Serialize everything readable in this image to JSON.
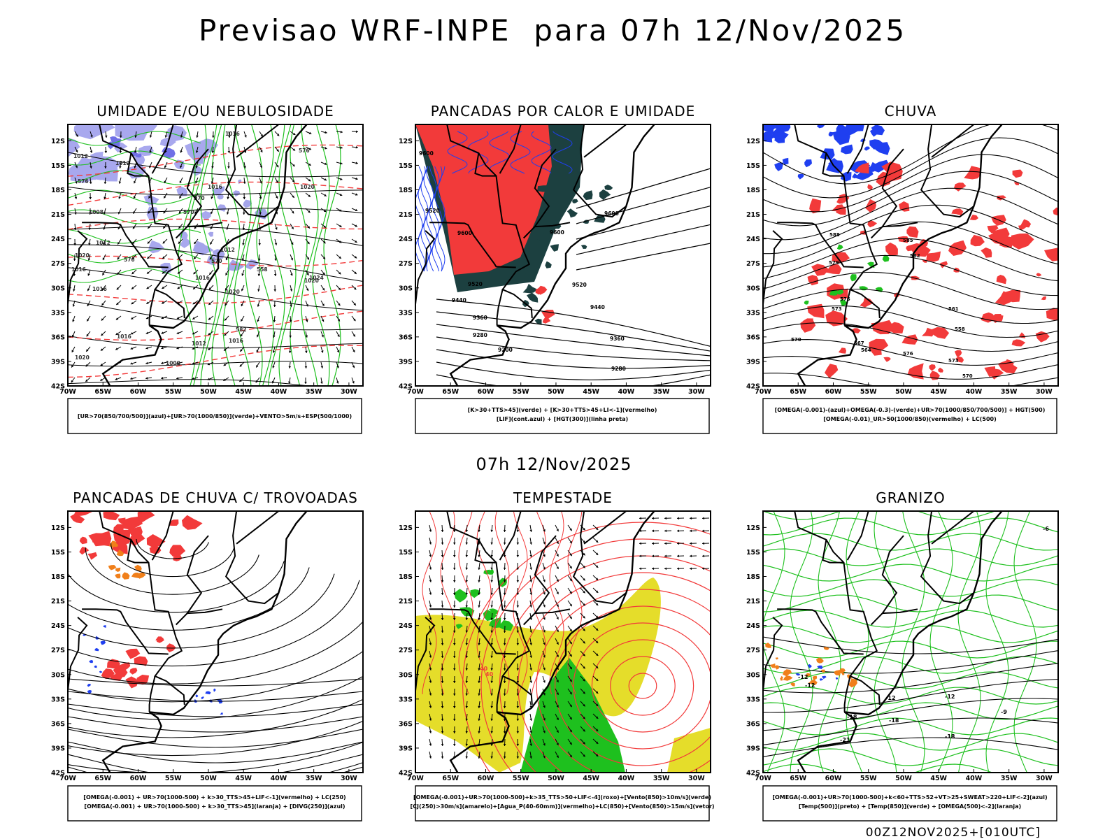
{
  "title": "Previsao WRF-INPE  para 07h 12/Nov/2025",
  "subtitle": "07h 12/Nov/2025",
  "footer": "00Z12NOV2025+[010UTC]",
  "colors": {
    "red": "#f23a3a",
    "blue": "#1f3ff0",
    "green": "#1ec01e",
    "lavender": "#a8a8ee",
    "darkteal": "#1c4040",
    "yellow": "#e5dd2a",
    "orange": "#f07f1a",
    "black": "#000000"
  },
  "chart_data": [
    {
      "id": "umidade",
      "type": "map",
      "title": "UMIDADE E/OU NEBULOSIDADE",
      "xticks": [
        "70W",
        "65W",
        "60W",
        "55W",
        "50W",
        "45W",
        "40W",
        "35W",
        "30W"
      ],
      "yticks": [
        "12S",
        "15S",
        "18S",
        "21S",
        "24S",
        "27S",
        "30S",
        "33S",
        "36S",
        "39S",
        "42S"
      ],
      "lon_range": [
        -70,
        -28
      ],
      "lat_range": [
        -42,
        -10
      ],
      "legend": [
        "[UR>70(850/700/500)](azul)+[UR>70(1000/850)](verde)+VENTO>5m/s+ESP(500/1000)"
      ],
      "contour_labels": [
        "1016",
        "1012",
        "1012",
        "1016",
        "1020",
        "1008",
        "1012",
        "1012",
        "1020",
        "1016",
        "1016",
        "1016",
        "1020",
        "1016",
        "1012",
        "1016",
        "1020",
        "1024",
        "1000",
        "1020",
        "576",
        "570",
        "576",
        "570",
        "576",
        "570",
        "558",
        "582"
      ]
    },
    {
      "id": "pancadas_calor",
      "type": "map",
      "title": "PANCADAS POR CALOR E UMIDADE",
      "xticks": [
        "70W",
        "65W",
        "60W",
        "55W",
        "50W",
        "45W",
        "40W",
        "35W",
        "30W"
      ],
      "yticks": [
        "12S",
        "15S",
        "18S",
        "21S",
        "24S",
        "27S",
        "30S",
        "33S",
        "36S",
        "39S",
        "42S"
      ],
      "lon_range": [
        -70,
        -28
      ],
      "lat_range": [
        -42,
        -10
      ],
      "legend": [
        "[K>30+TTS>45](verde)  +  [K>30+TTS>45+LI<-1](vermelho)",
        "[LIF](cont.azul)  +  [HGT(300)](linha preta)"
      ],
      "contour_labels": [
        "9600",
        "9520",
        "9600",
        "9600",
        "9600",
        "9520",
        "9520",
        "9440",
        "9440",
        "9360",
        "9360",
        "9280",
        "9280",
        "9200"
      ]
    },
    {
      "id": "chuva",
      "type": "map",
      "title": "CHUVA",
      "xticks": [
        "70W",
        "65W",
        "60W",
        "55W",
        "50W",
        "45W",
        "40W",
        "35W",
        "30W"
      ],
      "yticks": [
        "12S",
        "15S",
        "18S",
        "21S",
        "24S",
        "27S",
        "30S",
        "33S",
        "36S",
        "39S",
        "42S"
      ],
      "lon_range": [
        -70,
        -28
      ],
      "lat_range": [
        -42,
        -10
      ],
      "legend": [
        "[OMEGA(-0.001)-(azul)+OMEGA(-0.3)-(verde)+UR>70(1000/850/700/500)]  +  HGT(500)",
        "[OMEGA(-0.01)_UR>50(1000/850)(vermelho)  +  LC(500)"
      ],
      "contour_labels": [
        "588",
        "585",
        "582",
        "579",
        "576",
        "573",
        "570",
        "567",
        "564",
        "561",
        "558",
        "576",
        "573",
        "570"
      ]
    },
    {
      "id": "pancadas_trovoadas",
      "type": "map",
      "title": "PANCADAS DE CHUVA C/ TROVOADAS",
      "xticks": [
        "70W",
        "65W",
        "60W",
        "55W",
        "50W",
        "45W",
        "40W",
        "35W",
        "30W"
      ],
      "yticks": [
        "12S",
        "15S",
        "18S",
        "21S",
        "24S",
        "27S",
        "30S",
        "33S",
        "36S",
        "39S",
        "42S"
      ],
      "lon_range": [
        -70,
        -28
      ],
      "lat_range": [
        -42,
        -10
      ],
      "legend": [
        "[OMEGA(-0.001)  +  UR>70(1000-500)  +  k>30_TTS>45+LIF<-1](vermelho)  +  LC(250)",
        "[OMEGA(-0.001)  +  UR>70(1000-500)  +  k>30_TTS>45](laranja)  +  [DIVG(250)](azul)"
      ],
      "contour_labels": []
    },
    {
      "id": "tempestade",
      "type": "map",
      "title": "TEMPESTADE",
      "xticks": [
        "70W",
        "65W",
        "60W",
        "55W",
        "50W",
        "45W",
        "40W",
        "35W",
        "30W"
      ],
      "yticks": [
        "12S",
        "15S",
        "18S",
        "21S",
        "24S",
        "27S",
        "30S",
        "33S",
        "36S",
        "39S",
        "42S"
      ],
      "lon_range": [
        -70,
        -28
      ],
      "lat_range": [
        -42,
        -10
      ],
      "legend": [
        "[OMEGA(-0.001)+UR>70(1000-500)+k>35_TTS>50+LIF<-4](roxo)+[Vento(850)>10m/s](verde)",
        "[CJ(250)>30m/s](amarelo)+[Agua_P(40-60mm)](vermelho)+LC(850)+[Vento(850)>15m/s](vetor)"
      ],
      "contour_labels": [
        "40",
        "40"
      ]
    },
    {
      "id": "granizo",
      "type": "map",
      "title": "GRANIZO",
      "xticks": [
        "70W",
        "65W",
        "60W",
        "55W",
        "50W",
        "45W",
        "40W",
        "35W",
        "30W"
      ],
      "yticks": [
        "12S",
        "15S",
        "18S",
        "21S",
        "24S",
        "27S",
        "30S",
        "33S",
        "36S",
        "39S",
        "42S"
      ],
      "lon_range": [
        -70,
        -28
      ],
      "lat_range": [
        -42,
        -10
      ],
      "legend": [
        "[OMEGA(-0.001)+UR>70(1000-500)+k<60+TTS>52+VT>25+SWEAT>220+LIF<-2](azul)",
        "[Temp(500)](preto)  +  [Temp(850)](verde)  +  [OMEGA(500)<-2](laranja)"
      ],
      "contour_labels": [
        "-12",
        "-12",
        "-12",
        "-18",
        "-18",
        "-18",
        "-21",
        "-12",
        "-9",
        "-6"
      ]
    }
  ]
}
